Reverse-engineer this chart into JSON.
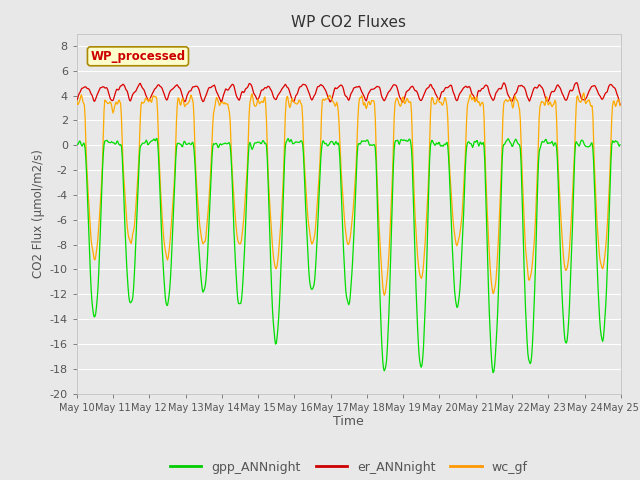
{
  "title": "WP CO2 Fluxes",
  "xlabel": "Time",
  "ylabel": "CO2 Flux (μmol/m2/s)",
  "ylim": [
    -20,
    9
  ],
  "yticks": [
    -20,
    -18,
    -16,
    -14,
    -12,
    -10,
    -8,
    -6,
    -4,
    -2,
    0,
    2,
    4,
    6,
    8
  ],
  "xlim_days": [
    10,
    25
  ],
  "xtick_labels": [
    "May 10",
    "May 11",
    "May 12",
    "May 13",
    "May 14",
    "May 15",
    "May 16",
    "May 17",
    "May 18",
    "May 19",
    "May 20",
    "May 21",
    "May 22",
    "May 23",
    "May 24",
    "May 25"
  ],
  "legend_entries": [
    "gpp_ANNnight",
    "er_ANNnight",
    "wc_gf"
  ],
  "legend_colors": [
    "#00cc00",
    "#cc0000",
    "#ff9900"
  ],
  "wp_label": "WP_processed",
  "wp_label_color": "#cc0000",
  "wp_box_facecolor": "#ffffcc",
  "wp_box_edgecolor": "#aa8800",
  "bg_color": "#e8e8e8",
  "plot_bg_color": "#e8e8e8",
  "grid_color": "#ffffff",
  "line_gpp_color": "#00dd00",
  "line_er_color": "#dd0000",
  "line_wc_color": "#ffaa00",
  "n_points_per_day": 48,
  "n_days": 15,
  "seed": 42
}
